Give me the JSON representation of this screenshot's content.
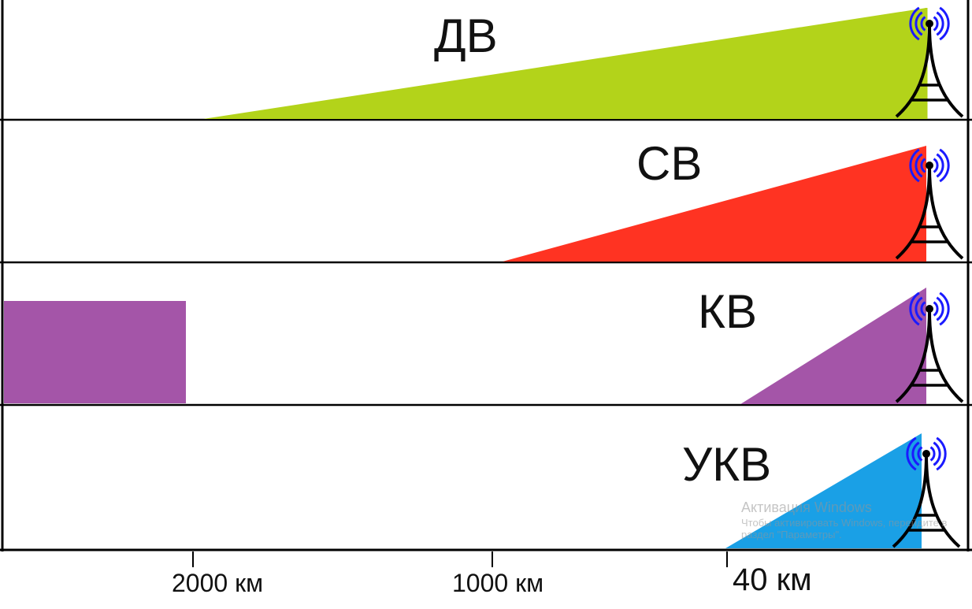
{
  "bands": [
    {
      "label": "ДВ",
      "color": "#b3d31a"
    },
    {
      "label": "СВ",
      "color": "#ff3322"
    },
    {
      "label": "КВ",
      "color": "#a455a8"
    },
    {
      "label": "УКВ",
      "color": "#1aa0e6"
    }
  ],
  "axis": {
    "ticks": [
      {
        "label": "2000 км"
      },
      {
        "label": "1000 км"
      },
      {
        "label": "40 км"
      }
    ]
  },
  "icons": {
    "tower": "radio-tower-icon",
    "waves": "radio-waves-icon",
    "wave_color": "#1a1aff",
    "tower_color": "#000000"
  },
  "watermark": {
    "title": "Активация Windows",
    "line1": "Чтобы активировать Windows, перейдите в",
    "line2": "раздел \"Параметры\"."
  }
}
